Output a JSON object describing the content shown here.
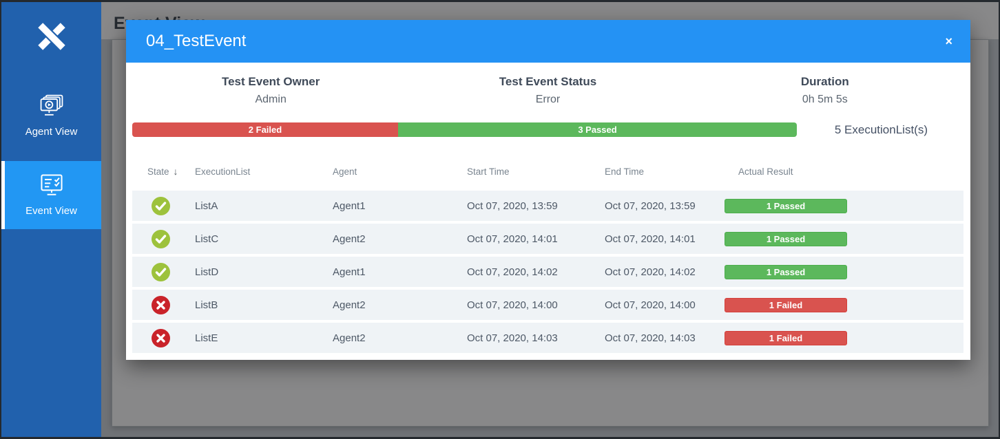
{
  "colors": {
    "sidebar_blue": "#2161ad",
    "active_item_blue": "#2297f3",
    "modal_header_blue": "#2492f4",
    "failed_red": "#d9534f",
    "passed_green": "#5cb85c",
    "state_pass_circle": "#9dc23c",
    "state_fail_circle": "#c9232a",
    "row_background": "#eff3f6"
  },
  "sidebar": {
    "items": [
      {
        "label": "Agent View",
        "active": false
      },
      {
        "label": "Event View",
        "active": true
      }
    ]
  },
  "page": {
    "title": "Event View"
  },
  "modal": {
    "title": "04_TestEvent",
    "close_label": "×",
    "info": [
      {
        "label": "Test Event Owner",
        "value": "Admin"
      },
      {
        "label": "Test Event Status",
        "value": "Error"
      },
      {
        "label": "Duration",
        "value": "0h 5m 5s"
      }
    ],
    "progress": {
      "failed_label": "2 Failed",
      "passed_label": "3 Passed",
      "failed_percent": 40,
      "passed_percent": 60
    },
    "summary": "5 ExecutionList(s)",
    "table": {
      "sort_arrow": "↓",
      "columns": [
        "State",
        "ExecutionList",
        "Agent",
        "Start Time",
        "End Time",
        "Actual Result"
      ],
      "rows": [
        {
          "state": "passed",
          "execution_list": "ListA",
          "agent": "Agent1",
          "start_time": "Oct 07, 2020, 13:59",
          "end_time": "Oct 07, 2020, 13:59",
          "result": "1 Passed",
          "result_type": "passed"
        },
        {
          "state": "passed",
          "execution_list": "ListC",
          "agent": "Agent2",
          "start_time": "Oct 07, 2020, 14:01",
          "end_time": "Oct 07, 2020, 14:01",
          "result": "1 Passed",
          "result_type": "passed"
        },
        {
          "state": "passed",
          "execution_list": "ListD",
          "agent": "Agent1",
          "start_time": "Oct 07, 2020, 14:02",
          "end_time": "Oct 07, 2020, 14:02",
          "result": "1 Passed",
          "result_type": "passed"
        },
        {
          "state": "failed",
          "execution_list": "ListB",
          "agent": "Agent2",
          "start_time": "Oct 07, 2020, 14:00",
          "end_time": "Oct 07, 2020, 14:00",
          "result": "1 Failed",
          "result_type": "failed"
        },
        {
          "state": "failed",
          "execution_list": "ListE",
          "agent": "Agent2",
          "start_time": "Oct 07, 2020, 14:03",
          "end_time": "Oct 07, 2020, 14:03",
          "result": "1 Failed",
          "result_type": "failed"
        }
      ]
    }
  }
}
